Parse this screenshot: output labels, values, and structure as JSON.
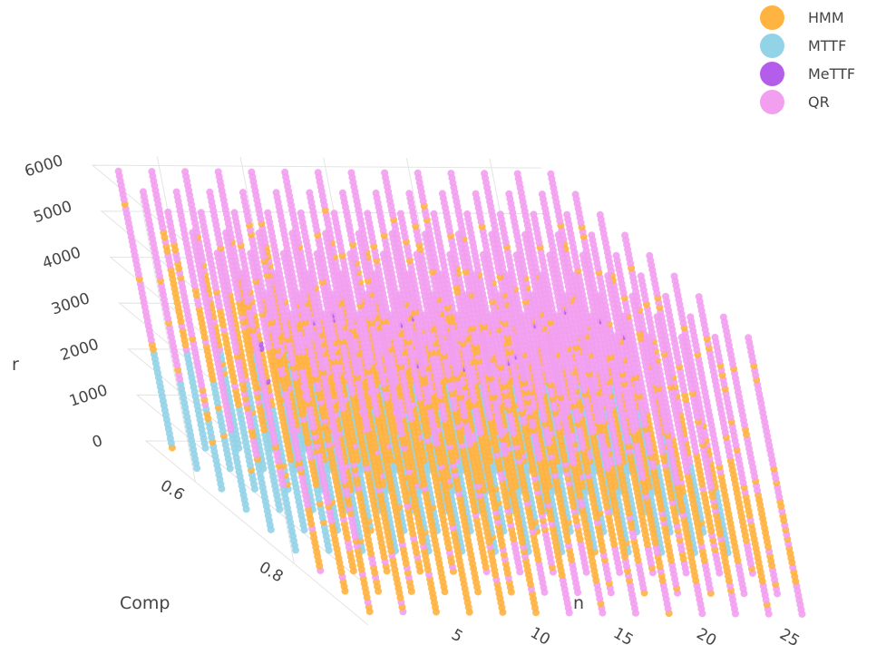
{
  "chart_data": {
    "type": "scatter3d",
    "title": "",
    "axes": {
      "x": {
        "label": "n",
        "ticks": [
          "5",
          "10",
          "15",
          "20",
          "25"
        ],
        "range": [
          1,
          28
        ]
      },
      "y": {
        "label": "Comp",
        "ticks": [
          "0.6",
          "0.8"
        ],
        "range": [
          0.5,
          0.95
        ]
      },
      "z": {
        "label": "r",
        "ticks": [
          "0",
          "1000",
          "2000",
          "3000",
          "4000",
          "5000",
          "6000"
        ],
        "range": [
          0,
          6200
        ]
      }
    },
    "grid": true,
    "legend_position": "top-right",
    "series": [
      {
        "name": "HMM",
        "color": "#FFB340",
        "region": "upper-mid r, larger n and lower Comp"
      },
      {
        "name": "MTTF",
        "color": "#93D3E8",
        "region": "r below about 2000, lower Comp"
      },
      {
        "name": "MeTTF",
        "color": "#B55DEB",
        "region": "isolated points near r 2500–3500"
      },
      {
        "name": "QR",
        "color": "#F29FEF",
        "region": "high r with small n; high Comp at low r"
      }
    ]
  }
}
